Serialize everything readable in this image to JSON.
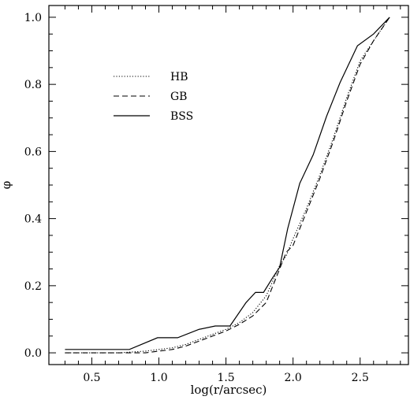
{
  "chart_data": {
    "type": "line",
    "title": "",
    "xlabel": "log(r/arcsec)",
    "ylabel": "φ",
    "xlim": [
      0.18,
      2.86
    ],
    "ylim": [
      -0.035,
      1.035
    ],
    "xticks": [
      0.5,
      1.0,
      1.5,
      2.0,
      2.5
    ],
    "xtick_labels": [
      "0.5",
      "1.0",
      "1.5",
      "2.0",
      "2.5"
    ],
    "yticks": [
      0.0,
      0.2,
      0.4,
      0.6,
      0.8,
      1.0
    ],
    "ytick_labels": [
      "0.0",
      "0.2",
      "0.4",
      "0.6",
      "0.8",
      "1.0"
    ],
    "grid": false,
    "legend_position": "upper-left",
    "series": [
      {
        "name": "HB",
        "style": "dotted",
        "x": [
          0.3,
          0.7,
          0.9,
          1.0,
          1.1,
          1.2,
          1.3,
          1.4,
          1.5,
          1.6,
          1.7,
          1.8,
          1.9,
          1.95,
          2.0,
          2.1,
          2.2,
          2.3,
          2.4,
          2.5,
          2.6,
          2.72
        ],
        "y": [
          0.0,
          0.0,
          0.005,
          0.01,
          0.015,
          0.025,
          0.04,
          0.055,
          0.07,
          0.09,
          0.12,
          0.17,
          0.26,
          0.29,
          0.34,
          0.43,
          0.53,
          0.64,
          0.76,
          0.87,
          0.93,
          1.0
        ]
      },
      {
        "name": "GB",
        "style": "dashed",
        "x": [
          0.3,
          0.7,
          0.9,
          1.0,
          1.1,
          1.2,
          1.3,
          1.4,
          1.5,
          1.6,
          1.7,
          1.8,
          1.9,
          1.95,
          2.0,
          2.1,
          2.2,
          2.3,
          2.4,
          2.5,
          2.6,
          2.72
        ],
        "y": [
          0.0,
          0.0,
          0.0,
          0.005,
          0.01,
          0.02,
          0.035,
          0.05,
          0.065,
          0.085,
          0.11,
          0.15,
          0.25,
          0.3,
          0.32,
          0.42,
          0.52,
          0.63,
          0.75,
          0.86,
          0.93,
          1.0
        ]
      },
      {
        "name": "BSS",
        "style": "solid",
        "x": [
          0.3,
          0.78,
          0.99,
          1.14,
          1.3,
          1.42,
          1.53,
          1.65,
          1.72,
          1.78,
          1.85,
          1.9,
          1.96,
          2.05,
          2.15,
          2.25,
          2.35,
          2.48,
          2.6,
          2.72
        ],
        "y": [
          0.01,
          0.01,
          0.045,
          0.045,
          0.07,
          0.08,
          0.08,
          0.15,
          0.18,
          0.18,
          0.225,
          0.255,
          0.37,
          0.505,
          0.59,
          0.705,
          0.805,
          0.915,
          0.95,
          1.0
        ]
      }
    ]
  }
}
